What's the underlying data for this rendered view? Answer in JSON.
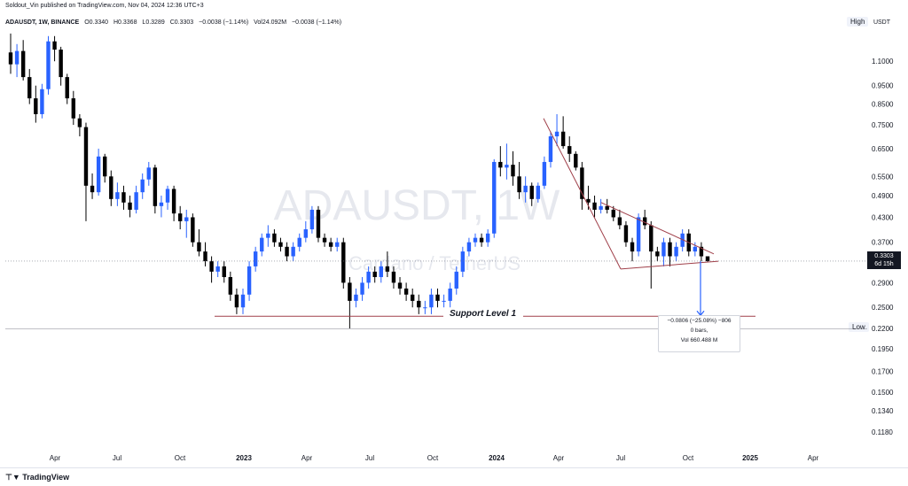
{
  "header": {
    "published": "Soldout_Vin published on TradingView.com, Nov 04, 2024 12:36 UTC+3",
    "symbol": "ADAUSDT, 1W, BINANCE",
    "open": "O0.3340",
    "high": "H0.3368",
    "low": "L0.3289",
    "close": "C0.3303",
    "change": "−0.0038 (−1.14%)",
    "volume": "Vol24.092M",
    "volume_change": "−0.0038 (−1.14%)"
  },
  "buttons": {
    "high": "High",
    "low": "Low",
    "currency": "USDT"
  },
  "watermark": {
    "ticker": "ADAUSDT, 1W",
    "name": "Cardano / TetherUS"
  },
  "price_tag": {
    "price": "0.3303",
    "countdown": "6d 15h"
  },
  "support_label": "Support Level 1",
  "measure": {
    "line1": "−0.0806 (−25.08%) −806",
    "line2": "0 bars,",
    "line3": "Vol 660.488 M"
  },
  "footer": {
    "brand": "TradingView"
  },
  "colors": {
    "up": "#2962ff",
    "down": "#000000",
    "trend": "#a0404a",
    "support": "#a0404a",
    "measure": "#2962ff"
  },
  "chart_data": {
    "type": "candlestick",
    "y_scale": "log",
    "y_ticks": [
      "1.1000",
      "0.9500",
      "0.8500",
      "0.7500",
      "0.6500",
      "0.5500",
      "0.4900",
      "0.4300",
      "0.3700",
      "0.3303",
      "0.2900",
      "0.2500",
      "0.2200",
      "0.1950",
      "0.1700",
      "0.1500",
      "0.1340",
      "0.1180"
    ],
    "y_tick_values": [
      1.1,
      0.95,
      0.85,
      0.75,
      0.65,
      0.55,
      0.49,
      0.43,
      0.37,
      0.29,
      0.25,
      0.195,
      0.17,
      0.15,
      0.134,
      0.118
    ],
    "x_ticks": [
      "Apr",
      "Jul",
      "Oct",
      "2023",
      "Apr",
      "Jul",
      "Oct",
      "2024",
      "Apr",
      "Jul",
      "Oct",
      "2025",
      "Apr"
    ],
    "ylim": [
      0.105,
      1.32
    ],
    "last_price": 0.3303,
    "support_level": 0.237,
    "projection_target": 0.22,
    "candles": [
      [
        1.16,
        1.3,
        1.02,
        1.08
      ],
      [
        1.08,
        1.22,
        1.0,
        1.17
      ],
      [
        1.17,
        1.25,
        0.98,
        1.0
      ],
      [
        1.0,
        1.05,
        0.85,
        0.88
      ],
      [
        0.88,
        0.95,
        0.76,
        0.8
      ],
      [
        0.8,
        0.96,
        0.78,
        0.93
      ],
      [
        0.93,
        1.28,
        0.9,
        1.24
      ],
      [
        1.24,
        1.28,
        1.1,
        1.18
      ],
      [
        1.18,
        1.2,
        0.95,
        1.0
      ],
      [
        1.0,
        1.02,
        0.85,
        0.88
      ],
      [
        0.88,
        0.92,
        0.75,
        0.78
      ],
      [
        0.78,
        0.8,
        0.7,
        0.74
      ],
      [
        0.74,
        0.76,
        0.42,
        0.52
      ],
      [
        0.52,
        0.56,
        0.48,
        0.5
      ],
      [
        0.5,
        0.65,
        0.49,
        0.62
      ],
      [
        0.62,
        0.63,
        0.53,
        0.55
      ],
      [
        0.55,
        0.57,
        0.46,
        0.48
      ],
      [
        0.48,
        0.53,
        0.46,
        0.5
      ],
      [
        0.5,
        0.52,
        0.45,
        0.47
      ],
      [
        0.47,
        0.49,
        0.43,
        0.45
      ],
      [
        0.45,
        0.52,
        0.44,
        0.5
      ],
      [
        0.5,
        0.56,
        0.48,
        0.54
      ],
      [
        0.54,
        0.6,
        0.52,
        0.58
      ],
      [
        0.58,
        0.59,
        0.44,
        0.46
      ],
      [
        0.46,
        0.49,
        0.43,
        0.47
      ],
      [
        0.47,
        0.52,
        0.45,
        0.51
      ],
      [
        0.51,
        0.52,
        0.42,
        0.44
      ],
      [
        0.44,
        0.46,
        0.4,
        0.42
      ],
      [
        0.42,
        0.45,
        0.38,
        0.43
      ],
      [
        0.43,
        0.44,
        0.36,
        0.37
      ],
      [
        0.37,
        0.4,
        0.34,
        0.35
      ],
      [
        0.35,
        0.37,
        0.32,
        0.33
      ],
      [
        0.33,
        0.34,
        0.29,
        0.31
      ],
      [
        0.31,
        0.33,
        0.3,
        0.32
      ],
      [
        0.32,
        0.33,
        0.29,
        0.3
      ],
      [
        0.3,
        0.31,
        0.26,
        0.27
      ],
      [
        0.27,
        0.28,
        0.24,
        0.25
      ],
      [
        0.25,
        0.28,
        0.24,
        0.27
      ],
      [
        0.27,
        0.33,
        0.26,
        0.32
      ],
      [
        0.32,
        0.36,
        0.31,
        0.35
      ],
      [
        0.35,
        0.39,
        0.34,
        0.38
      ],
      [
        0.38,
        0.41,
        0.36,
        0.39
      ],
      [
        0.39,
        0.4,
        0.36,
        0.37
      ],
      [
        0.37,
        0.38,
        0.35,
        0.36
      ],
      [
        0.36,
        0.37,
        0.33,
        0.34
      ],
      [
        0.34,
        0.37,
        0.33,
        0.36
      ],
      [
        0.36,
        0.39,
        0.35,
        0.38
      ],
      [
        0.38,
        0.42,
        0.37,
        0.4
      ],
      [
        0.4,
        0.46,
        0.39,
        0.45
      ],
      [
        0.45,
        0.46,
        0.37,
        0.38
      ],
      [
        0.38,
        0.39,
        0.36,
        0.37
      ],
      [
        0.37,
        0.38,
        0.35,
        0.36
      ],
      [
        0.36,
        0.38,
        0.35,
        0.37
      ],
      [
        0.37,
        0.38,
        0.28,
        0.29
      ],
      [
        0.29,
        0.3,
        0.22,
        0.26
      ],
      [
        0.26,
        0.28,
        0.25,
        0.27
      ],
      [
        0.27,
        0.3,
        0.26,
        0.29
      ],
      [
        0.29,
        0.32,
        0.28,
        0.31
      ],
      [
        0.31,
        0.32,
        0.29,
        0.3
      ],
      [
        0.3,
        0.33,
        0.29,
        0.32
      ],
      [
        0.32,
        0.35,
        0.3,
        0.31
      ],
      [
        0.31,
        0.32,
        0.28,
        0.29
      ],
      [
        0.29,
        0.3,
        0.27,
        0.28
      ],
      [
        0.28,
        0.29,
        0.26,
        0.27
      ],
      [
        0.27,
        0.28,
        0.25,
        0.26
      ],
      [
        0.26,
        0.27,
        0.24,
        0.25
      ],
      [
        0.25,
        0.26,
        0.24,
        0.25
      ],
      [
        0.25,
        0.28,
        0.24,
        0.27
      ],
      [
        0.27,
        0.28,
        0.25,
        0.26
      ],
      [
        0.26,
        0.27,
        0.25,
        0.26
      ],
      [
        0.26,
        0.29,
        0.25,
        0.28
      ],
      [
        0.28,
        0.32,
        0.27,
        0.31
      ],
      [
        0.31,
        0.36,
        0.3,
        0.35
      ],
      [
        0.35,
        0.38,
        0.34,
        0.37
      ],
      [
        0.37,
        0.39,
        0.36,
        0.38
      ],
      [
        0.38,
        0.39,
        0.36,
        0.37
      ],
      [
        0.37,
        0.4,
        0.36,
        0.39
      ],
      [
        0.39,
        0.61,
        0.38,
        0.6
      ],
      [
        0.6,
        0.66,
        0.55,
        0.58
      ],
      [
        0.58,
        0.67,
        0.54,
        0.59
      ],
      [
        0.59,
        0.64,
        0.52,
        0.55
      ],
      [
        0.55,
        0.6,
        0.48,
        0.5
      ],
      [
        0.5,
        0.55,
        0.47,
        0.52
      ],
      [
        0.52,
        0.53,
        0.46,
        0.48
      ],
      [
        0.48,
        0.53,
        0.47,
        0.52
      ],
      [
        0.52,
        0.62,
        0.51,
        0.6
      ],
      [
        0.6,
        0.72,
        0.58,
        0.7
      ],
      [
        0.7,
        0.8,
        0.66,
        0.72
      ],
      [
        0.72,
        0.79,
        0.65,
        0.66
      ],
      [
        0.66,
        0.7,
        0.6,
        0.63
      ],
      [
        0.63,
        0.64,
        0.57,
        0.58
      ],
      [
        0.58,
        0.6,
        0.45,
        0.48
      ],
      [
        0.48,
        0.52,
        0.45,
        0.47
      ],
      [
        0.47,
        0.49,
        0.43,
        0.45
      ],
      [
        0.45,
        0.48,
        0.44,
        0.46
      ],
      [
        0.46,
        0.48,
        0.44,
        0.45
      ],
      [
        0.45,
        0.46,
        0.42,
        0.43
      ],
      [
        0.43,
        0.45,
        0.4,
        0.41
      ],
      [
        0.41,
        0.42,
        0.36,
        0.37
      ],
      [
        0.37,
        0.38,
        0.33,
        0.35
      ],
      [
        0.35,
        0.44,
        0.34,
        0.43
      ],
      [
        0.43,
        0.45,
        0.4,
        0.41
      ],
      [
        0.41,
        0.42,
        0.28,
        0.35
      ],
      [
        0.35,
        0.36,
        0.33,
        0.34
      ],
      [
        0.34,
        0.38,
        0.32,
        0.37
      ],
      [
        0.37,
        0.38,
        0.32,
        0.34
      ],
      [
        0.34,
        0.37,
        0.33,
        0.36
      ],
      [
        0.36,
        0.4,
        0.35,
        0.39
      ],
      [
        0.39,
        0.4,
        0.34,
        0.35
      ],
      [
        0.35,
        0.37,
        0.34,
        0.36
      ],
      [
        0.36,
        0.37,
        0.33,
        0.34
      ],
      [
        0.34,
        0.3368,
        0.3289,
        0.3303
      ]
    ]
  }
}
